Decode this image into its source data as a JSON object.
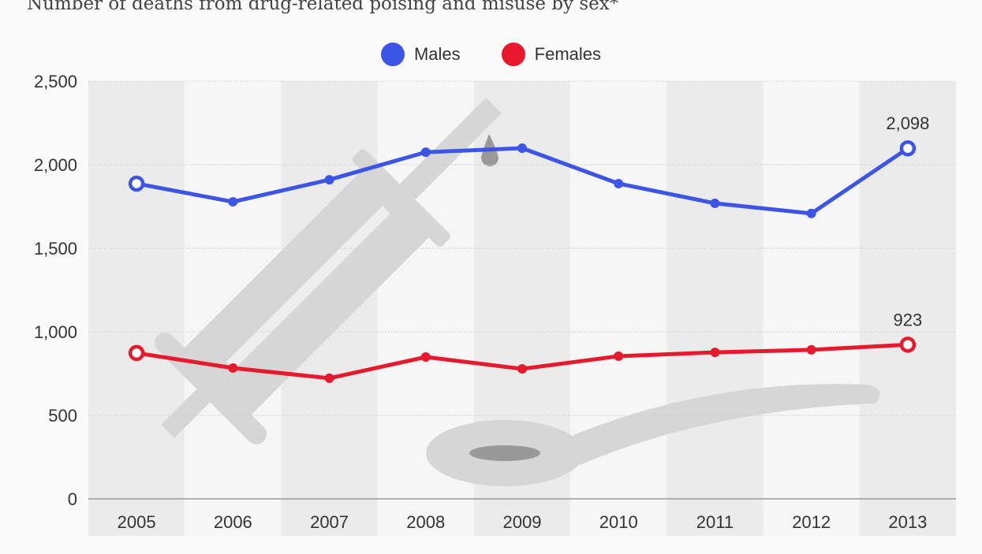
{
  "chart_data": {
    "type": "line",
    "title": "Number of deaths from drug-related poising and misuse by sex*",
    "categories": [
      "2005",
      "2006",
      "2007",
      "2008",
      "2009",
      "2010",
      "2011",
      "2012",
      "2013"
    ],
    "series": [
      {
        "name": "Males",
        "color": "#3d55e6",
        "values": [
          1887,
          1778,
          1910,
          2075,
          2099,
          1887,
          1769,
          1708,
          2098
        ]
      },
      {
        "name": "Females",
        "color": "#e8192c",
        "values": [
          873,
          783,
          722,
          849,
          778,
          854,
          877,
          892,
          923
        ]
      }
    ],
    "data_labels": [
      {
        "series": "Males",
        "category": "2013",
        "text": "2,098"
      },
      {
        "series": "Females",
        "category": "2013",
        "text": "923"
      }
    ],
    "yticks": [
      "0",
      "500",
      "1,000",
      "1,500",
      "2,000",
      "2,500"
    ],
    "ylim": [
      0,
      2500
    ],
    "xlabel": "",
    "ylabel": "",
    "grid": true,
    "legend": "top-center"
  }
}
